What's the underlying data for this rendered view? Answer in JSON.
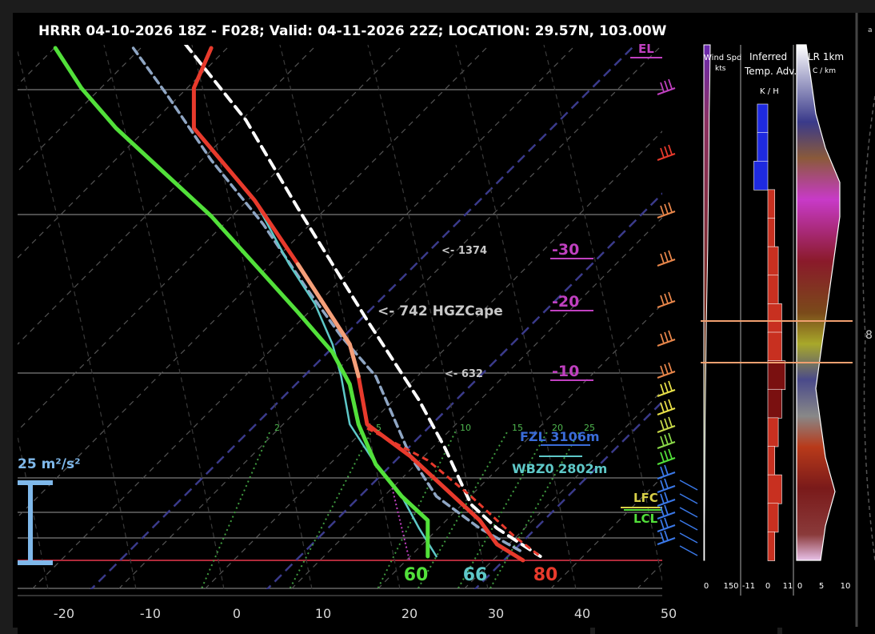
{
  "header": {
    "title": "HRRR 04-10-2026 18Z - F028;  Valid: 04-11-2026 22Z;  LOCATION: 29.57N, 103.00W"
  },
  "chart_data": [
    {
      "type": "line",
      "name": "skew-t",
      "xlim": [
        -25,
        50
      ],
      "x_ticks": [
        "-20",
        "-10",
        "0",
        "10",
        "20",
        "30",
        "40",
        "50"
      ],
      "series": [
        {
          "name": "temperature",
          "color": "#e83a2c",
          "points": [
            [
              -3,
              60
            ],
            [
              -5,
              110
            ],
            [
              -5,
              160
            ],
            [
              2,
              250
            ],
            [
              7,
              330
            ],
            [
              10,
              380
            ],
            [
              13,
              430
            ],
            [
              14,
              470
            ],
            [
              15,
              530
            ],
            [
              20,
              570
            ],
            [
              24,
              610
            ],
            [
              28,
              650
            ],
            [
              30,
              680
            ],
            [
              33,
              700
            ]
          ]
        },
        {
          "name": "wet-bulb",
          "color": "#5ec8c8",
          "points": [
            [
              2,
              250
            ],
            [
              6,
              330
            ],
            [
              9,
              380
            ],
            [
              11,
              430
            ],
            [
              12,
              470
            ],
            [
              13,
              530
            ],
            [
              16,
              580
            ],
            [
              19,
              620
            ],
            [
              21,
              660
            ],
            [
              23,
              695
            ]
          ]
        },
        {
          "name": "dewpoint",
          "color": "#52e03a",
          "points": [
            [
              -21,
              60
            ],
            [
              -18,
              110
            ],
            [
              -14,
              160
            ],
            [
              -8,
              220
            ],
            [
              -3,
              270
            ],
            [
              2,
              330
            ],
            [
              7,
              390
            ],
            [
              11,
              440
            ],
            [
              13,
              480
            ],
            [
              14,
              530
            ],
            [
              16,
              580
            ],
            [
              19,
              620
            ],
            [
              22,
              650
            ],
            [
              22,
              695
            ]
          ]
        },
        {
          "name": "parcel",
          "color": "#ffffff",
          "points": [
            [
              -6,
              55
            ],
            [
              1,
              150
            ],
            [
              7,
              260
            ],
            [
              11,
              330
            ],
            [
              15,
              400
            ],
            [
              18,
              450
            ],
            [
              21,
              500
            ],
            [
              24,
              560
            ],
            [
              27,
              630
            ],
            [
              30,
              660
            ],
            [
              35,
              695
            ]
          ]
        },
        {
          "name": "virtual-temperature",
          "color": "#8fa6c4",
          "points": [
            [
              -12,
              60
            ],
            [
              -8,
              120
            ],
            [
              -3,
              200
            ],
            [
              3,
              280
            ],
            [
              8,
              360
            ],
            [
              12,
              420
            ],
            [
              16,
              470
            ],
            [
              18,
              520
            ],
            [
              20,
              570
            ],
            [
              23,
              620
            ],
            [
              28,
              660
            ],
            [
              33,
              690
            ]
          ]
        }
      ],
      "surface_values": [
        {
          "label": "60",
          "color": "#52e03a"
        },
        {
          "label": "66",
          "color": "#5ec8c8"
        },
        {
          "label": "80",
          "color": "#e83a2c"
        }
      ],
      "mixing_ratio_labels": [
        "2",
        "5",
        "10",
        "15",
        "20",
        "25"
      ],
      "annotations": {
        "cape_1374": "<- 1374",
        "hgz_cape": "<- 742 HGZCape",
        "cape_632": "<- 632",
        "iso_m30": "-30",
        "iso_m20": "-20",
        "iso_m10": "-10",
        "fzl": "FZL 3106m",
        "wbz0": "WBZ0 2802m",
        "el": "EL",
        "lfc": "LFC",
        "lcl": "LCL",
        "srh": "25 m²/s²"
      }
    },
    {
      "type": "area",
      "name": "wind-speed-profile",
      "title": "Wind Spd",
      "unit": "kts",
      "xlim": [
        0,
        150
      ],
      "x_ticks": [
        "0",
        "150"
      ],
      "values": [
        30,
        28,
        25,
        24,
        22,
        20,
        18,
        15,
        12,
        10,
        8,
        6,
        5,
        4,
        3,
        3
      ]
    },
    {
      "type": "bar",
      "name": "inferred-temp-advection",
      "title": "Inferred Temp. Adv.",
      "unit": "K / H",
      "xlim": [
        -11,
        11
      ],
      "x_ticks": [
        "-11",
        "0",
        "11"
      ],
      "values": [
        -3,
        -3,
        -4,
        2,
        2,
        3,
        3,
        4,
        4,
        5,
        4,
        3,
        2,
        4,
        3,
        2
      ]
    },
    {
      "type": "area",
      "name": "lapse-rate-1km",
      "title": "LR 1km",
      "unit": "C / km",
      "xlim": [
        0,
        10
      ],
      "x_ticks": [
        "0",
        "5",
        "10"
      ],
      "values": [
        2,
        3,
        4,
        6,
        9,
        9,
        8,
        7,
        6,
        5,
        4,
        5,
        6,
        8,
        6,
        5
      ]
    }
  ],
  "hodograph": {
    "corner_label": "a",
    "ring_label": "8"
  }
}
